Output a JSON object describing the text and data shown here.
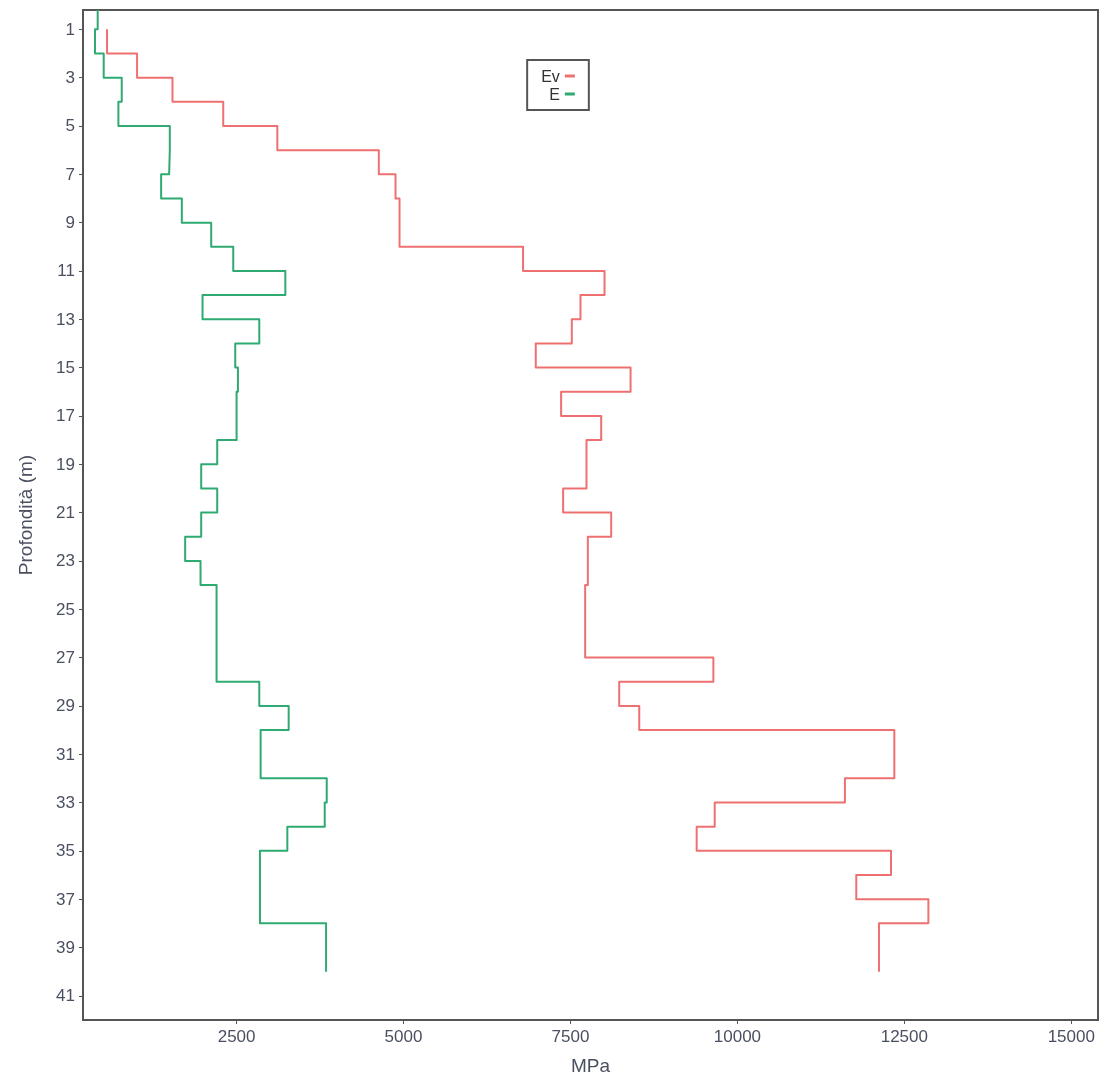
{
  "chart_data": {
    "type": "step",
    "orientation": "horizontal",
    "xlabel": "MPa",
    "ylabel": "Profondità (m)",
    "xlim": [
      200,
      15400
    ],
    "xticks": [
      2500,
      5000,
      7500,
      10000,
      12500,
      15000
    ],
    "ylim": [
      42,
      0.2
    ],
    "yticks": [
      1,
      3,
      5,
      7,
      9,
      11,
      13,
      15,
      17,
      19,
      21,
      23,
      25,
      27,
      29,
      31,
      33,
      35,
      37,
      39,
      41
    ],
    "legend": "top",
    "grid": false,
    "marker": "none",
    "line_style": "solid",
    "series": [
      {
        "name": "Ev",
        "color": "#ee7070",
        "x": [
          1,
          2,
          3,
          4,
          5,
          6,
          7,
          8,
          10,
          11,
          12,
          13,
          14,
          15,
          16,
          17,
          18,
          20,
          21,
          22,
          24,
          27,
          28,
          29,
          30,
          32,
          33,
          34,
          35,
          36,
          37,
          38,
          40
        ],
        "values": [
          560,
          1010,
          1540,
          2300,
          3110,
          4630,
          4880,
          4940,
          6790,
          8010,
          7650,
          7520,
          6980,
          8400,
          7360,
          7960,
          7740,
          7390,
          8110,
          7760,
          7720,
          9640,
          8230,
          8530,
          12350,
          11610,
          9660,
          9390,
          12300,
          11780,
          12860,
          12120,
          12120
        ]
      },
      {
        "name": "E",
        "color": "#2eaa72",
        "x": [
          0.2,
          1,
          2,
          3,
          4,
          5,
          6,
          7,
          8,
          9,
          10,
          11,
          12,
          13,
          14,
          15,
          16,
          18,
          19,
          20,
          21,
          22,
          23,
          24,
          28,
          29,
          30,
          32,
          33,
          34,
          35,
          38,
          40
        ],
        "values": [
          420,
          380,
          510,
          780,
          730,
          1500,
          1490,
          1370,
          1680,
          2120,
          2450,
          3230,
          1990,
          2840,
          2480,
          2520,
          2500,
          2210,
          1970,
          2210,
          1970,
          1730,
          1960,
          2200,
          2840,
          3280,
          2860,
          3850,
          3820,
          3260,
          2850,
          3840,
          3840
        ]
      }
    ]
  }
}
